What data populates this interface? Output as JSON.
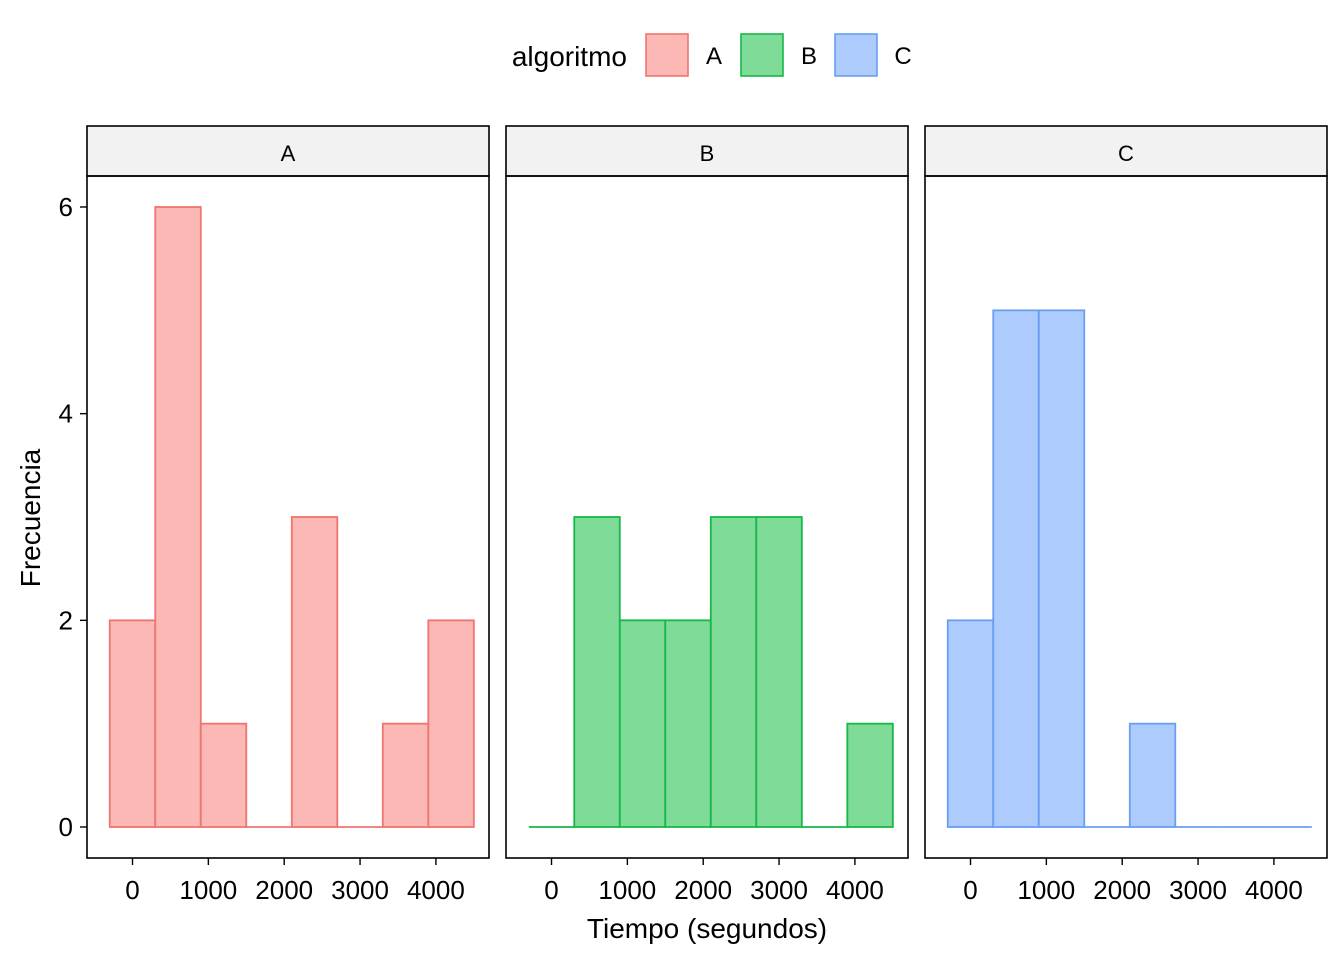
{
  "chart_data": {
    "type": "bar",
    "subtype": "histogram-faceted",
    "title": "",
    "xlabel": "Tiempo (segundos)",
    "ylabel": "Frecuencia",
    "legend": {
      "title": "algoritmo",
      "position": "top",
      "items": [
        {
          "label": "A",
          "fill": "#fbb8b4",
          "stroke": "#f07470"
        },
        {
          "label": "B",
          "fill": "#7fdb98",
          "stroke": "#16b849"
        },
        {
          "label": "C",
          "fill": "#adcbfd",
          "stroke": "#6a9ef2"
        }
      ]
    },
    "x_range": [
      -600,
      4700
    ],
    "x_ticks": [
      0,
      1000,
      2000,
      3000,
      4000
    ],
    "x_tick_labels": [
      "0",
      "1000",
      "2000",
      "3000",
      "4000"
    ],
    "y_range": [
      -0.3,
      6.3
    ],
    "y_ticks": [
      0,
      2,
      4,
      6
    ],
    "y_tick_labels": [
      "0",
      "2",
      "4",
      "6"
    ],
    "grid": false,
    "bin_width": 600,
    "bin_centers": [
      0,
      600,
      1200,
      1800,
      2400,
      3000,
      3600,
      4200
    ],
    "facets": [
      {
        "label": "A",
        "counts": [
          2,
          6,
          1,
          0,
          3,
          0,
          1,
          2
        ]
      },
      {
        "label": "B",
        "counts": [
          0,
          3,
          2,
          2,
          3,
          3,
          0,
          1
        ]
      },
      {
        "label": "C",
        "counts": [
          2,
          5,
          5,
          0,
          1,
          0,
          0,
          0
        ]
      }
    ]
  }
}
